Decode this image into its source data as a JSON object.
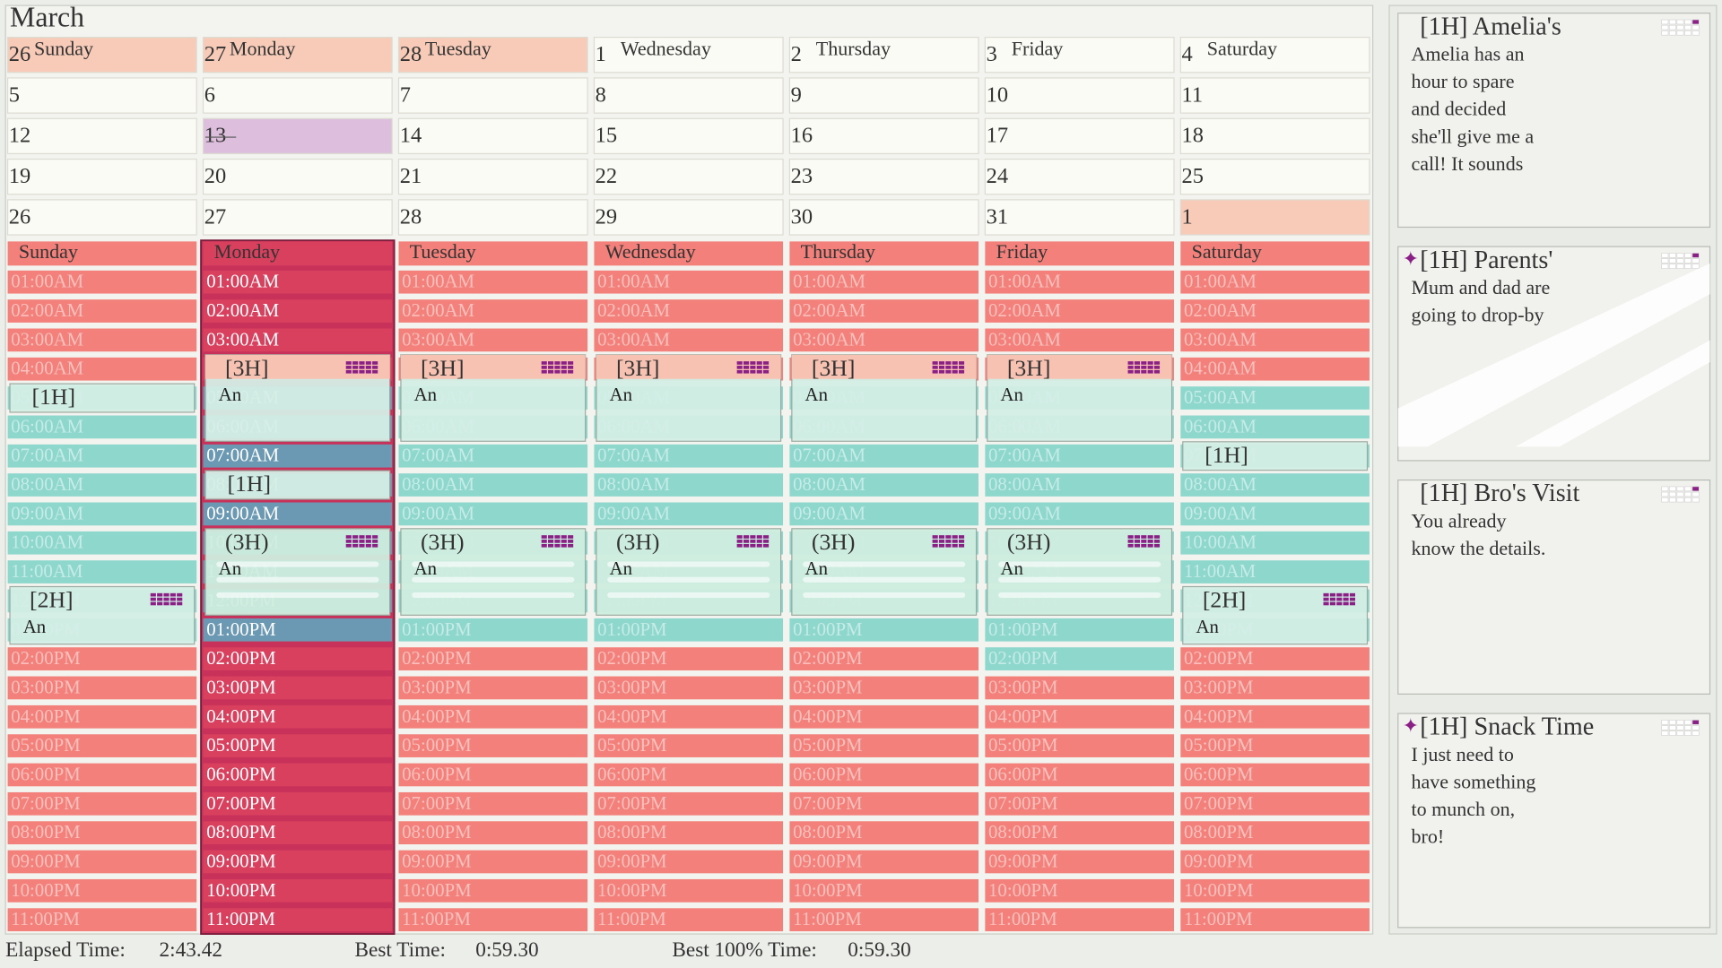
{
  "month": "March",
  "calendar": {
    "day_names": [
      "Sunday",
      "Monday",
      "Tuesday",
      "Wednesday",
      "Thursday",
      "Friday",
      "Saturday"
    ],
    "weeks": [
      [
        26,
        27,
        28,
        1,
        2,
        3,
        4
      ],
      [
        5,
        6,
        7,
        8,
        9,
        10,
        11
      ],
      [
        12,
        13,
        14,
        15,
        16,
        17,
        18
      ],
      [
        19,
        20,
        21,
        22,
        23,
        24,
        25
      ],
      [
        26,
        27,
        28,
        29,
        30,
        31,
        1
      ]
    ]
  },
  "schedule": {
    "hours": [
      "01:00AM",
      "02:00AM",
      "03:00AM",
      "04:00AM",
      "05:00AM",
      "06:00AM",
      "07:00AM",
      "08:00AM",
      "09:00AM",
      "10:00AM",
      "11:00AM",
      "12:00PM",
      "01:00PM",
      "02:00PM",
      "03:00PM",
      "04:00PM",
      "05:00PM",
      "06:00PM",
      "07:00PM",
      "08:00PM",
      "09:00PM",
      "10:00PM",
      "11:00PM"
    ],
    "days": [
      {
        "events": [
          {
            "start": "05:00AM",
            "label": "[1H]"
          },
          {
            "start": "12:00PM",
            "label": "[2H]",
            "note": "An"
          }
        ]
      },
      {
        "events": [
          {
            "start": "04:00AM",
            "label": "[3H]",
            "note": "An"
          },
          {
            "start": "08:00AM",
            "label": "[1H]"
          },
          {
            "start": "10:00AM",
            "label": "(3H)",
            "note": "An"
          }
        ]
      },
      {
        "events": [
          {
            "start": "04:00AM",
            "label": "[3H]",
            "note": "An"
          },
          {
            "start": "10:00AM",
            "label": "(3H)",
            "note": "An"
          }
        ]
      },
      {
        "events": [
          {
            "start": "04:00AM",
            "label": "[3H]",
            "note": "An"
          },
          {
            "start": "10:00AM",
            "label": "(3H)",
            "note": "An"
          }
        ]
      },
      {
        "events": [
          {
            "start": "04:00AM",
            "label": "[3H]",
            "note": "An"
          },
          {
            "start": "10:00AM",
            "label": "(3H)",
            "note": "An"
          }
        ]
      },
      {
        "events": [
          {
            "start": "04:00AM",
            "label": "[3H]",
            "note": "An"
          },
          {
            "start": "10:00AM",
            "label": "(3H)",
            "note": "An"
          }
        ]
      },
      {
        "events": [
          {
            "start": "07:00AM",
            "label": "[1H]"
          },
          {
            "start": "12:00PM",
            "label": "[2H]",
            "note": "An"
          }
        ]
      }
    ]
  },
  "cards": [
    {
      "title": "[1H] Amelia's",
      "body": [
        "Amelia has an",
        "hour to spare",
        "and decided",
        "she'll give me a",
        "call! It sounds"
      ]
    },
    {
      "title": "[1H] Parents'",
      "body": [
        "Mum and dad are",
        "going to drop-by"
      ]
    },
    {
      "title": "[1H] Bro's Visit",
      "body": [
        "You already",
        "know the details."
      ]
    },
    {
      "title": "[1H] Snack Time",
      "body": [
        "I just need to",
        "have something",
        "to munch on,",
        "bro!"
      ]
    }
  ],
  "footer": {
    "elapsed_label": "Elapsed Time:",
    "elapsed": "2:43.42",
    "best_label": "Best Time:",
    "best": "0:59.30",
    "best100_label": "Best 100% Time:",
    "best100": "0:59.30"
  }
}
